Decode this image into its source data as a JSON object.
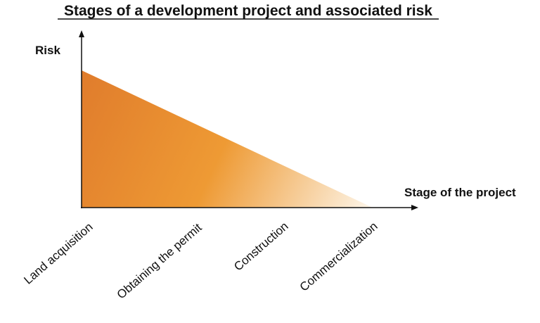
{
  "title": "Stages of a development project and associated risk",
  "y_axis_label": "Risk",
  "x_axis_label": "Stage of the project",
  "stages": [
    {
      "label": "Land acquisition"
    },
    {
      "label": "Obtaining the permit"
    },
    {
      "label": "Construction"
    },
    {
      "label": "Commercialization"
    }
  ],
  "colors": {
    "risk_high": "#e07c2c",
    "risk_mid": "#ee9a34",
    "risk_low": "#fdf6ea",
    "axis": "#111111",
    "text": "#111111"
  }
}
